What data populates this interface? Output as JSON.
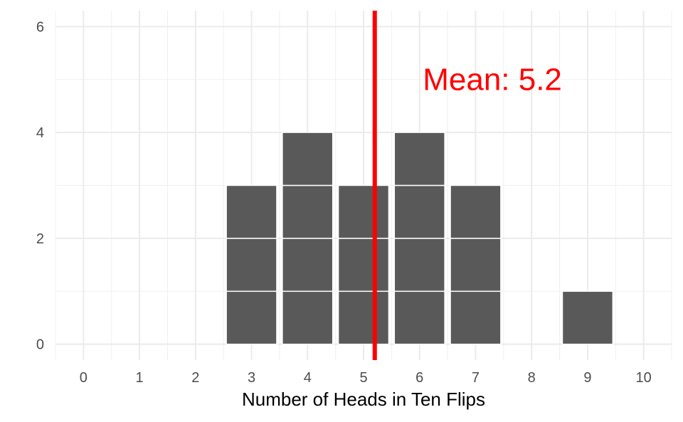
{
  "chart_data": {
    "type": "bar",
    "title": "",
    "xlabel": "Number of Heads in Ten Flips",
    "ylabel": "",
    "x_ticks": [
      "0",
      "1",
      "2",
      "3",
      "4",
      "5",
      "6",
      "7",
      "8",
      "9",
      "10"
    ],
    "y_ticks": [
      "0",
      "2",
      "4",
      "6"
    ],
    "xlim": [
      -0.5,
      10.5
    ],
    "ylim": [
      -0.3,
      6.3
    ],
    "categories": [
      0,
      1,
      2,
      3,
      4,
      5,
      6,
      7,
      8,
      9,
      10
    ],
    "values": [
      0,
      0,
      0,
      3,
      4,
      3,
      4,
      3,
      0,
      1,
      0
    ],
    "bar_color": "#595959",
    "grid": true,
    "reference_line": {
      "x": 5.2,
      "color": "#ff0000"
    },
    "annotation": {
      "text": "Mean: 5.2",
      "x": 7.3,
      "y": 5,
      "color": "#ff0000"
    }
  }
}
